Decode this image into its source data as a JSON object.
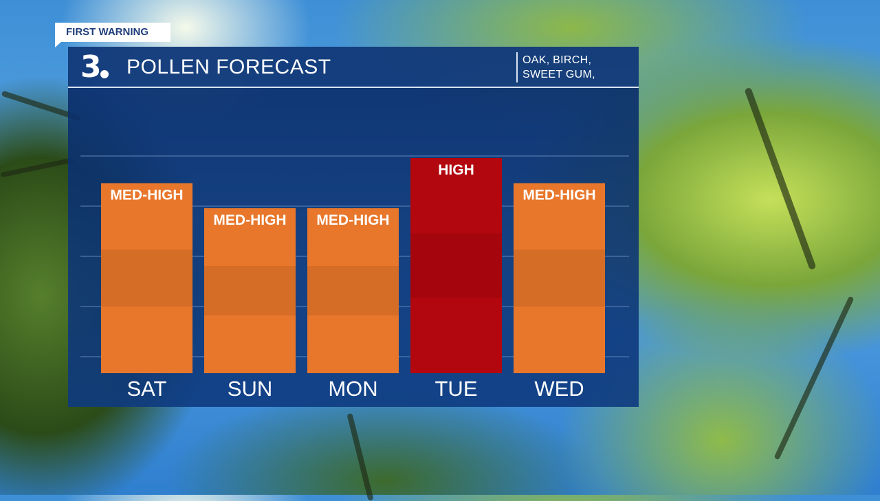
{
  "banner": {
    "label": "FIRST WARNING"
  },
  "header": {
    "logo": "3",
    "title": "POLLEN FORECAST",
    "species_lines": [
      "OAK, BIRCH,",
      "SWEET GUM,"
    ]
  },
  "colors": {
    "orange_bar": "#e8772b",
    "red_bar": "#b3070f",
    "panel": "#0d326f",
    "brand_blue": "#1f3d7a"
  },
  "chart_data": {
    "type": "bar",
    "categories": [
      "SAT",
      "SUN",
      "MON",
      "TUE",
      "WED"
    ],
    "values": [
      3.5,
      3,
      3,
      4,
      3.5
    ],
    "data_labels": [
      "MED-HIGH",
      "MED-HIGH",
      "MED-HIGH",
      "HIGH",
      "MED-HIGH"
    ],
    "bar_colors": [
      "#e8772b",
      "#e8772b",
      "#e8772b",
      "#b3070f",
      "#e8772b"
    ],
    "ylim": [
      0,
      5
    ],
    "grid": true,
    "title": "POLLEN FORECAST",
    "xlabel": "",
    "ylabel": ""
  }
}
